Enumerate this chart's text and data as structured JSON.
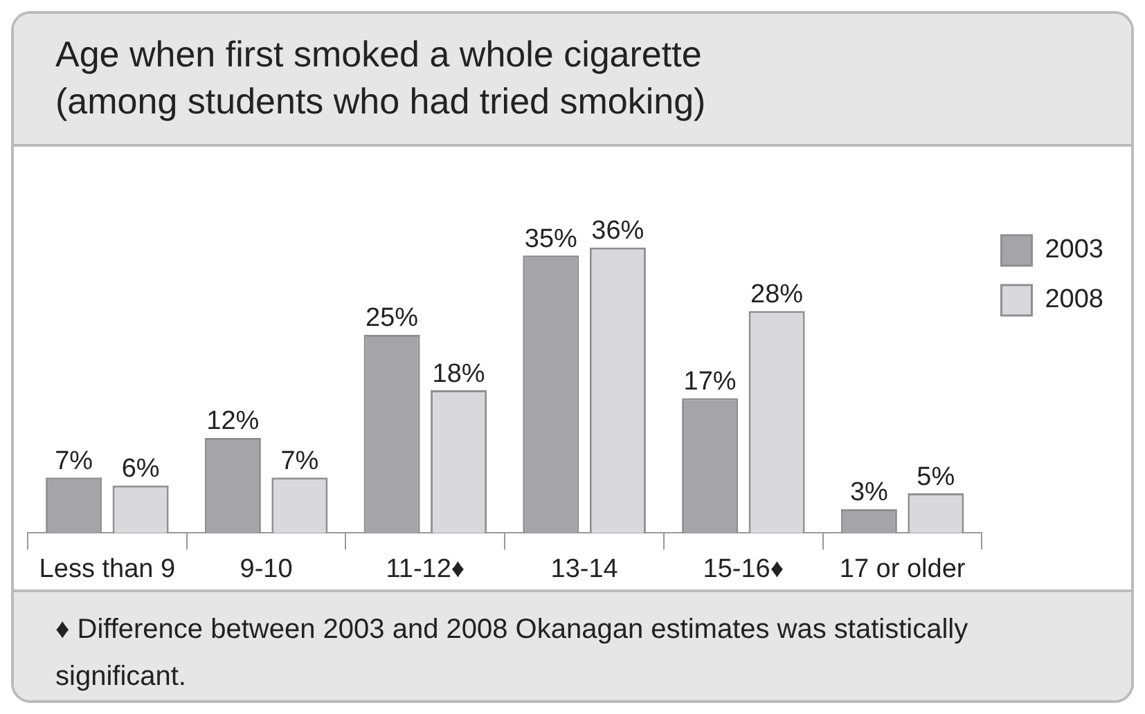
{
  "chart_data": {
    "type": "bar",
    "title": "Age when first smoked a whole cigarette",
    "subtitle": "(among students who had tried smoking)",
    "categories": [
      "Less than 9",
      "9-10",
      "11-12♦",
      "13-14",
      "15-16♦",
      "17 or older"
    ],
    "series": [
      {
        "name": "2003",
        "color": "#a5a5a7",
        "values": [
          7,
          12,
          25,
          35,
          17,
          3
        ],
        "value_labels": [
          "7%",
          "12%",
          "25%",
          "35%",
          "17%",
          "3%"
        ]
      },
      {
        "name": "2008",
        "color": "#d9d9db",
        "values": [
          6,
          7,
          18,
          36,
          28,
          5
        ],
        "value_labels": [
          "6%",
          "7%",
          "18%",
          "36%",
          "28%",
          "5%"
        ]
      }
    ],
    "legend": "top right",
    "annotations": [
      "♦ Difference between 2003 and 2008 Okanagan estimates was statistically significant."
    ]
  }
}
